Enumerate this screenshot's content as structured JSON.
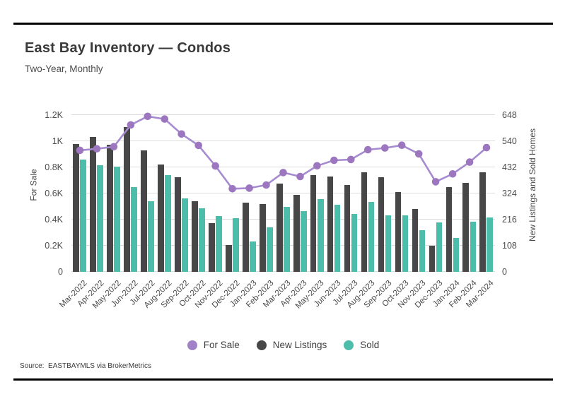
{
  "header": {
    "title": "East Bay Inventory — Condos",
    "subtitle": "Two-Year, Monthly"
  },
  "source_note": "Source:  EASTBAYMLS via BrokerMetrics",
  "colors": {
    "for_sale_line": "#a78bd0",
    "for_sale_dot": "#9c77bf",
    "new_listings": "#474747",
    "sold": "#4cbcab",
    "grid": "#dcdcdc",
    "rule": "#000000"
  },
  "axes": {
    "left": {
      "title": "For Sale",
      "ticks": [
        "1.2K",
        "1K",
        "0.8K",
        "0.6K",
        "0.4K",
        "0.2K",
        "0"
      ],
      "max": 1200
    },
    "right": {
      "title": "New Listings and Sold Homes",
      "ticks": [
        "648",
        "540",
        "432",
        "324",
        "216",
        "108",
        "0"
      ],
      "max": 648
    }
  },
  "legend": [
    {
      "label": "For Sale",
      "color": "#a282c6"
    },
    {
      "label": "New Listings",
      "color": "#474747"
    },
    {
      "label": "Sold",
      "color": "#4cbcab"
    }
  ],
  "chart_data": {
    "type": "bar",
    "subtype": "grouped bars with overlaid line, dual y-axis",
    "title": "East Bay Inventory — Condos",
    "subtitle": "Two-Year, Monthly",
    "categories": [
      "Mar-2022",
      "Apr-2022",
      "May-2022",
      "Jun-2022",
      "Jul-2022",
      "Aug-2022",
      "Sep-2022",
      "Oct-2022",
      "Nov-2022",
      "Dec-2022",
      "Jan-2023",
      "Feb-2023",
      "Mar-2023",
      "Apr-2023",
      "May-2023",
      "Jun-2023",
      "Jul-2023",
      "Aug-2023",
      "Sep-2023",
      "Oct-2023",
      "Nov-2023",
      "Dec-2023",
      "Jan-2024",
      "Feb-2024",
      "Mar-2024"
    ],
    "series": [
      {
        "name": "For Sale",
        "type": "line",
        "axis": "left",
        "values": [
          930,
          942,
          958,
          1125,
          1190,
          1170,
          1055,
          968,
          810,
          636,
          641,
          665,
          760,
          730,
          812,
          854,
          860,
          935,
          948,
          969,
          903,
          690,
          750,
          840,
          951
        ]
      },
      {
        "name": "New Listings",
        "type": "bar",
        "axis": "right",
        "values": [
          529,
          557,
          526,
          599,
          502,
          444,
          390,
          291,
          202,
          110,
          286,
          280,
          365,
          318,
          400,
          394,
          359,
          411,
          392,
          331,
          261,
          108,
          349,
          368,
          411
        ]
      },
      {
        "name": "Sold",
        "type": "bar",
        "axis": "right",
        "values": [
          465,
          441,
          434,
          350,
          292,
          400,
          303,
          264,
          230,
          223,
          125,
          184,
          269,
          252,
          301,
          278,
          239,
          290,
          234,
          234,
          171,
          203,
          139,
          207,
          225
        ]
      }
    ],
    "left_axis": {
      "label": "For Sale",
      "range": [
        0,
        1200
      ]
    },
    "right_axis": {
      "label": "New Listings and Sold Homes",
      "range": [
        0,
        648
      ]
    },
    "grid": true,
    "legend_position": "bottom"
  }
}
